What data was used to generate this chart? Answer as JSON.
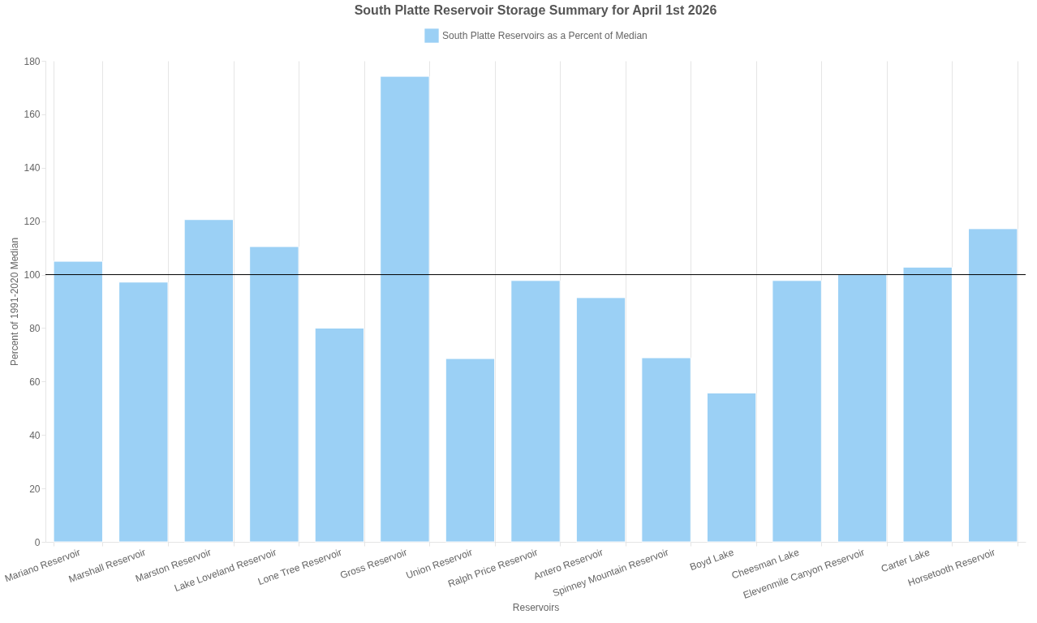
{
  "chart_data": {
    "type": "bar",
    "title": "South Platte Reservoir Storage Summary for April 1st 2026",
    "xlabel": "Reservoirs",
    "ylabel": "Percent of 1991-2020 Median",
    "categories": [
      "Mariano Reservoir",
      "Marshall Reservoir",
      "Marston Reservoir",
      "Lake Loveland Reservoir",
      "Lone Tree Reservoir",
      "Gross Reservoir",
      "Union Reservoir",
      "Ralph Price Reservoir",
      "Antero Reservoir",
      "Spinney Mountain Reservoir",
      "Boyd Lake",
      "Cheesman Lake",
      "Elevenmile Canyon Reservoir",
      "Carter Lake",
      "Horsetooth Reservoir"
    ],
    "series": [
      {
        "name": "South Platte Reservoirs as a Percent of Median",
        "color": "#9bd0f5",
        "values": [
          105,
          97.2,
          120.6,
          110.5,
          80,
          174.2,
          68.6,
          97.8,
          91.4,
          68.9,
          55.7,
          97.8,
          100,
          102.8,
          117.2
        ]
      }
    ],
    "ylim": [
      0,
      180
    ],
    "yticks": [
      0,
      20,
      40,
      60,
      80,
      100,
      120,
      140,
      160,
      180
    ],
    "grid": "x",
    "legend": "top",
    "ref_lines": [
      {
        "axis": "y",
        "value": 100,
        "color": "#000000"
      }
    ]
  }
}
